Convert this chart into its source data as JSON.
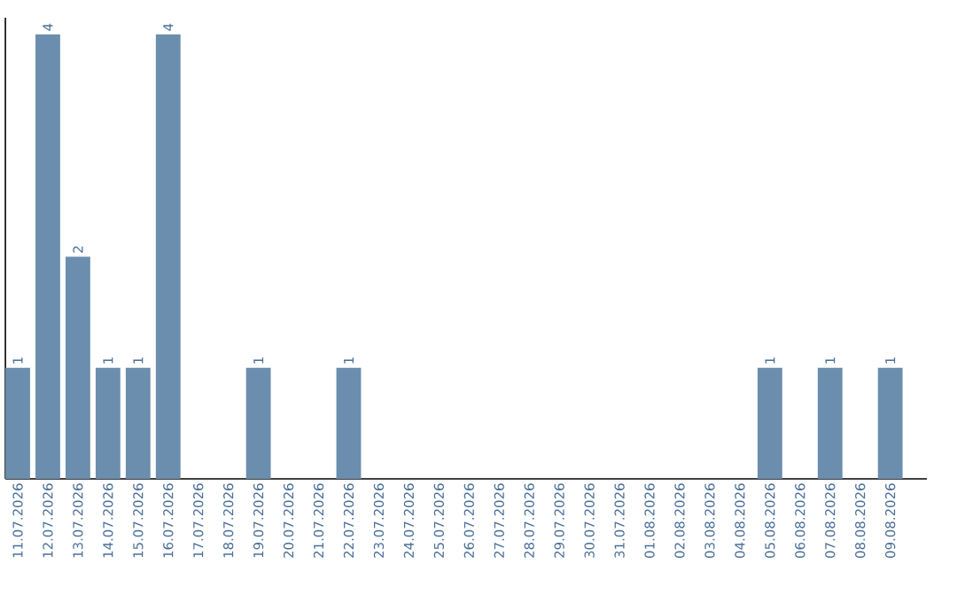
{
  "chart_data": {
    "type": "bar",
    "color": "#6b8eae",
    "categories": [
      "11.07.2026",
      "12.07.2026",
      "13.07.2026",
      "14.07.2026",
      "15.07.2026",
      "16.07.2026",
      "17.07.2026",
      "18.07.2026",
      "19.07.2026",
      "20.07.2026",
      "21.07.2026",
      "22.07.2026",
      "23.07.2026",
      "24.07.2026",
      "25.07.2026",
      "26.07.2026",
      "27.07.2026",
      "28.07.2026",
      "29.07.2026",
      "30.07.2026",
      "31.07.2026",
      "01.08.2026",
      "02.08.2026",
      "03.08.2026",
      "04.08.2026",
      "05.08.2026",
      "06.08.2026",
      "07.08.2026",
      "08.08.2026",
      "09.08.2026"
    ],
    "values": [
      1,
      4,
      2,
      1,
      1,
      4,
      0,
      0,
      1,
      0,
      0,
      1,
      0,
      0,
      0,
      0,
      0,
      0,
      0,
      0,
      0,
      0,
      0,
      0,
      0,
      1,
      0,
      1,
      0,
      1
    ],
    "value_labels": [
      "1",
      "4",
      "2",
      "1",
      "1",
      "4",
      null,
      null,
      "1",
      null,
      null,
      "1",
      null,
      null,
      null,
      null,
      null,
      null,
      null,
      null,
      null,
      null,
      null,
      null,
      null,
      "1",
      null,
      "1",
      null,
      "1"
    ],
    "ylim": [
      0,
      4.15
    ],
    "tick_labels": "x"
  }
}
